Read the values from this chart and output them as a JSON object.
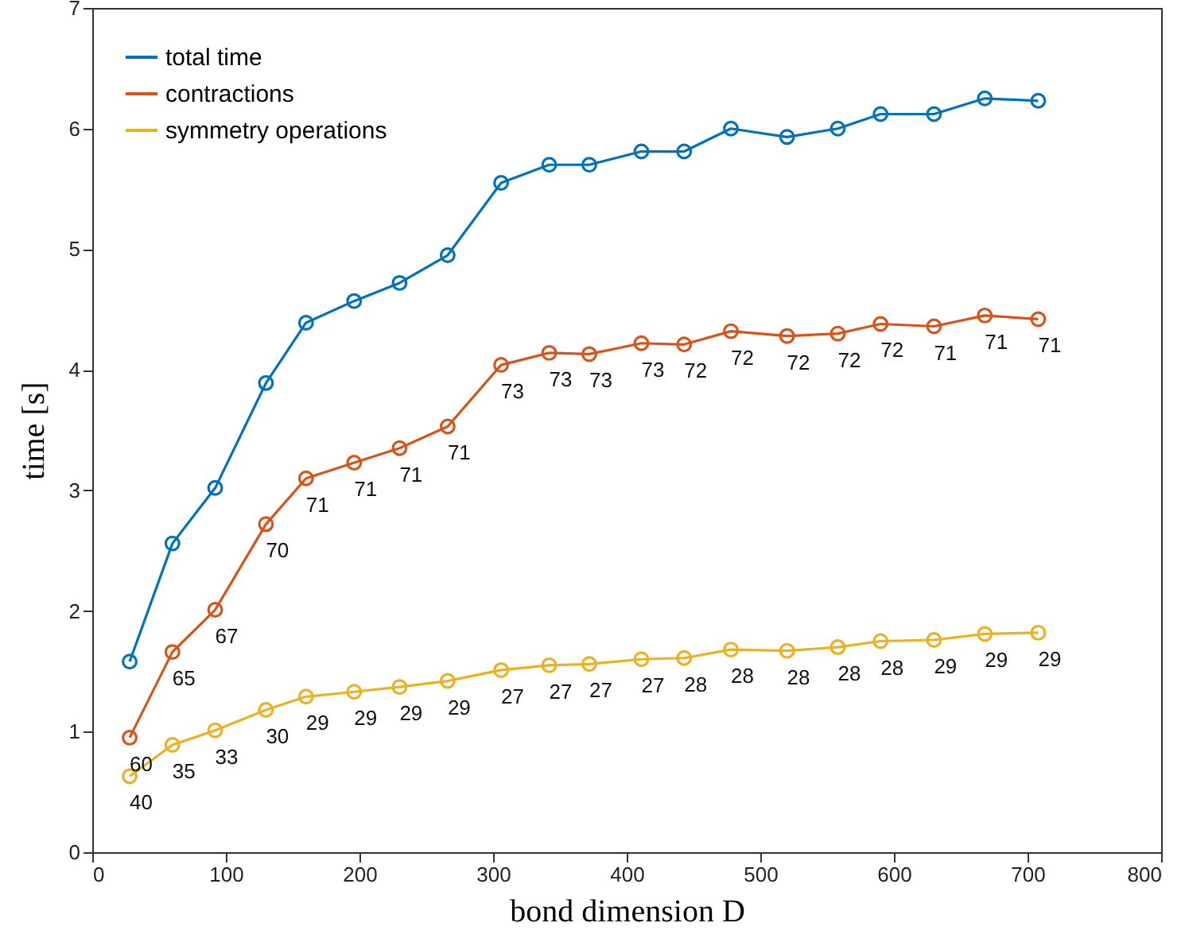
{
  "chart_data": {
    "type": "line",
    "xlabel": "bond dimension D",
    "ylabel": "time [s]",
    "x": [
      28,
      60,
      92,
      130,
      160,
      196,
      230,
      266,
      306,
      342,
      372,
      411,
      443,
      478,
      520,
      558,
      590,
      630,
      668,
      708
    ],
    "series": [
      {
        "name": "total time",
        "color": "#0072bd",
        "values": [
          1.58,
          2.56,
          3.02,
          3.89,
          4.39,
          4.57,
          4.72,
          4.95,
          5.55,
          5.7,
          5.7,
          5.81,
          5.81,
          6.0,
          5.93,
          6.0,
          6.12,
          6.12,
          6.25,
          6.23
        ]
      },
      {
        "name": "contractions",
        "color": "#d95319",
        "values": [
          0.95,
          1.66,
          2.01,
          2.72,
          3.1,
          3.23,
          3.35,
          3.53,
          4.04,
          4.14,
          4.13,
          4.22,
          4.21,
          4.32,
          4.28,
          4.3,
          4.38,
          4.36,
          4.45,
          4.42
        ]
      },
      {
        "name": "symmetry operations",
        "color": "#edb120",
        "values": [
          0.63,
          0.89,
          1.01,
          1.18,
          1.29,
          1.33,
          1.37,
          1.42,
          1.51,
          1.55,
          1.56,
          1.6,
          1.61,
          1.68,
          1.67,
          1.7,
          1.75,
          1.76,
          1.81,
          1.82
        ]
      }
    ],
    "annotations": [
      {
        "text": "60",
        "x": 28,
        "y": 0.95
      },
      {
        "text": "65",
        "x": 60,
        "y": 1.66
      },
      {
        "text": "67",
        "x": 92,
        "y": 2.01
      },
      {
        "text": "70",
        "x": 130,
        "y": 2.72
      },
      {
        "text": "71",
        "x": 160,
        "y": 3.1
      },
      {
        "text": "71",
        "x": 196,
        "y": 3.23
      },
      {
        "text": "71",
        "x": 230,
        "y": 3.35
      },
      {
        "text": "71",
        "x": 266,
        "y": 3.53
      },
      {
        "text": "73",
        "x": 306,
        "y": 4.04
      },
      {
        "text": "73",
        "x": 342,
        "y": 4.14
      },
      {
        "text": "73",
        "x": 372,
        "y": 4.13
      },
      {
        "text": "73",
        "x": 411,
        "y": 4.22
      },
      {
        "text": "72",
        "x": 443,
        "y": 4.21
      },
      {
        "text": "72",
        "x": 478,
        "y": 4.32
      },
      {
        "text": "72",
        "x": 520,
        "y": 4.28
      },
      {
        "text": "72",
        "x": 558,
        "y": 4.3
      },
      {
        "text": "72",
        "x": 590,
        "y": 4.38
      },
      {
        "text": "71",
        "x": 630,
        "y": 4.36
      },
      {
        "text": "71",
        "x": 668,
        "y": 4.45
      },
      {
        "text": "71",
        "x": 708,
        "y": 4.42
      },
      {
        "text": "40",
        "x": 28,
        "y": 0.63
      },
      {
        "text": "35",
        "x": 60,
        "y": 0.89
      },
      {
        "text": "33",
        "x": 92,
        "y": 1.01
      },
      {
        "text": "30",
        "x": 130,
        "y": 1.18
      },
      {
        "text": "29",
        "x": 160,
        "y": 1.29
      },
      {
        "text": "29",
        "x": 196,
        "y": 1.33
      },
      {
        "text": "29",
        "x": 230,
        "y": 1.37
      },
      {
        "text": "29",
        "x": 266,
        "y": 1.42
      },
      {
        "text": "27",
        "x": 306,
        "y": 1.51
      },
      {
        "text": "27",
        "x": 342,
        "y": 1.55
      },
      {
        "text": "27",
        "x": 372,
        "y": 1.56
      },
      {
        "text": "27",
        "x": 411,
        "y": 1.6
      },
      {
        "text": "28",
        "x": 443,
        "y": 1.61
      },
      {
        "text": "28",
        "x": 478,
        "y": 1.68
      },
      {
        "text": "28",
        "x": 520,
        "y": 1.67
      },
      {
        "text": "28",
        "x": 558,
        "y": 1.7
      },
      {
        "text": "28",
        "x": 590,
        "y": 1.75
      },
      {
        "text": "29",
        "x": 630,
        "y": 1.76
      },
      {
        "text": "29",
        "x": 668,
        "y": 1.81
      },
      {
        "text": "29",
        "x": 708,
        "y": 1.82
      }
    ],
    "xlim": [
      0,
      800
    ],
    "xticks": [
      0,
      100,
      200,
      300,
      400,
      500,
      600,
      700,
      800
    ],
    "ylim": [
      0,
      7
    ],
    "yticks": [
      0,
      1,
      2,
      3,
      4,
      5,
      6,
      7
    ],
    "grid": false,
    "legend": "top left",
    "marker": "circle",
    "line_style": "solid"
  }
}
